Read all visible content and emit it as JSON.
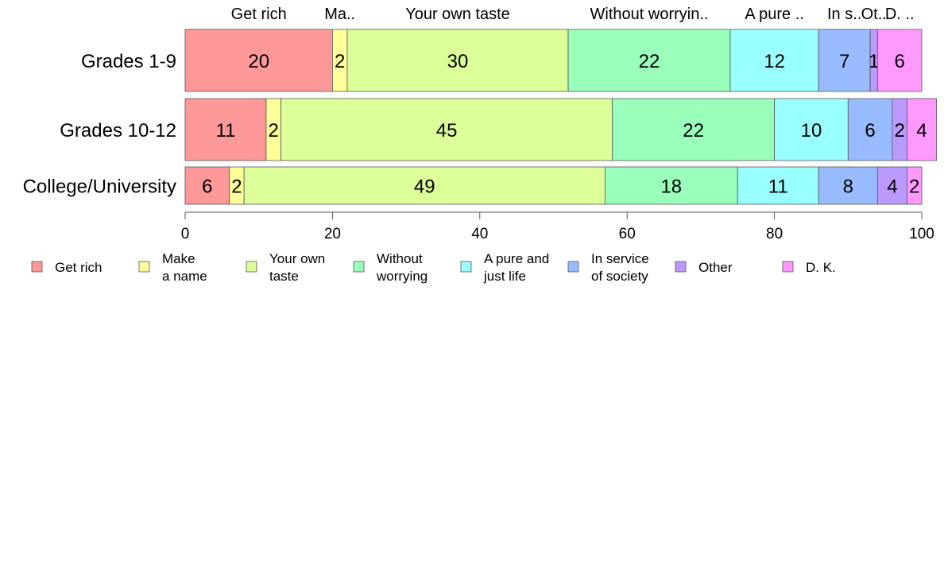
{
  "chart_data": {
    "type": "bar",
    "orientation": "horizontal",
    "stacked": "percent",
    "categories": [
      "Grades 1-9",
      "Grades 10-12",
      "College/University"
    ],
    "series": [
      {
        "name": "Get rich",
        "short_label": "Get rich",
        "legend_lines": [
          "Get rich"
        ],
        "color": "#ff9999",
        "values": [
          20,
          11,
          6
        ]
      },
      {
        "name": "Make a name",
        "short_label": "Ma..",
        "legend_lines": [
          "Make",
          "a name"
        ],
        "color": "#ffff99",
        "values": [
          2,
          2,
          2
        ]
      },
      {
        "name": "Your own taste",
        "short_label": "Your own taste",
        "legend_lines": [
          "Your own",
          "taste"
        ],
        "color": "#ddff99",
        "values": [
          30,
          45,
          49
        ]
      },
      {
        "name": "Without worrying",
        "short_label": "Without worryin..",
        "legend_lines": [
          "Without",
          "worrying"
        ],
        "color": "#99ffbb",
        "values": [
          22,
          22,
          18
        ]
      },
      {
        "name": "A pure and just life",
        "short_label": "A pure ..",
        "legend_lines": [
          "A pure and",
          "just life"
        ],
        "color": "#99ffff",
        "values": [
          12,
          10,
          11
        ]
      },
      {
        "name": "In service of society",
        "short_label": "In s..",
        "legend_lines": [
          "In service",
          "of society"
        ],
        "color": "#99bbff",
        "values": [
          7,
          6,
          8
        ]
      },
      {
        "name": "Other",
        "short_label": "Ot..",
        "legend_lines": [
          "Other"
        ],
        "color": "#bb99ff",
        "values": [
          1,
          2,
          4
        ]
      },
      {
        "name": "D. K.",
        "short_label": "D. ..",
        "legend_lines": [
          "D. K."
        ],
        "color": "#ff99ff",
        "values": [
          6,
          4,
          2
        ]
      }
    ],
    "xlim": [
      0,
      100
    ],
    "xticks": [
      0,
      20,
      40,
      60,
      80,
      100
    ],
    "title": "",
    "xlabel": "",
    "ylabel": "",
    "grid": false,
    "legend_position": "bottom",
    "segment_labels_top": true
  }
}
